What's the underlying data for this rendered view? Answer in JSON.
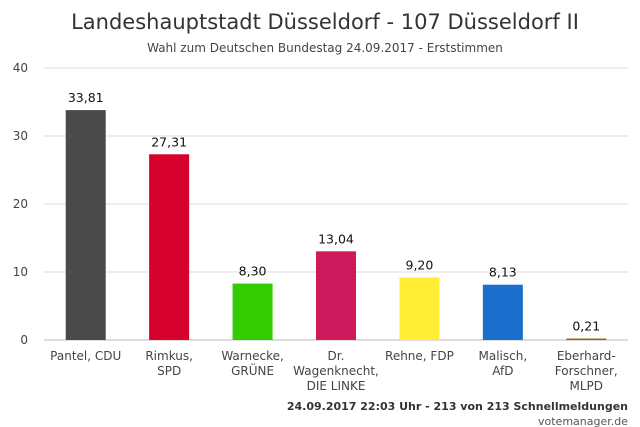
{
  "chart_data": {
    "type": "bar",
    "title": "Landeshauptstadt Düsseldorf - 107 Düsseldorf II",
    "subtitle": "Wahl zum Deutschen Bundestag 24.09.2017 - Erststimmen",
    "xlabel": "",
    "ylabel": "",
    "ylim": [
      0,
      40
    ],
    "yticks": [
      0,
      10,
      20,
      30,
      40
    ],
    "grid": true,
    "categories": [
      [
        "Pantel, CDU"
      ],
      [
        "Rimkus,",
        "SPD"
      ],
      [
        "Warnecke,",
        "GRÜNE"
      ],
      [
        "Dr.",
        "Wagenknecht,",
        "DIE LINKE"
      ],
      [
        "Rehne, FDP"
      ],
      [
        "Malisch,",
        "AfD"
      ],
      [
        "Eberhard-",
        "Forschner,",
        "MLPD"
      ]
    ],
    "values": [
      33.81,
      27.31,
      8.3,
      13.04,
      9.2,
      8.13,
      0.21
    ],
    "value_labels": [
      "33,81",
      "27,31",
      "8,30",
      "13,04",
      "9,20",
      "8,13",
      "0,21"
    ],
    "colors": [
      "#4a4a4a",
      "#d5002b",
      "#33cc00",
      "#cc1a5c",
      "#ffee33",
      "#1b6fcc",
      "#aa5500"
    ]
  },
  "footer": "24.09.2017 22:03 Uhr - 213 von 213 Schnellmeldungen",
  "credit": "votemanager.de"
}
